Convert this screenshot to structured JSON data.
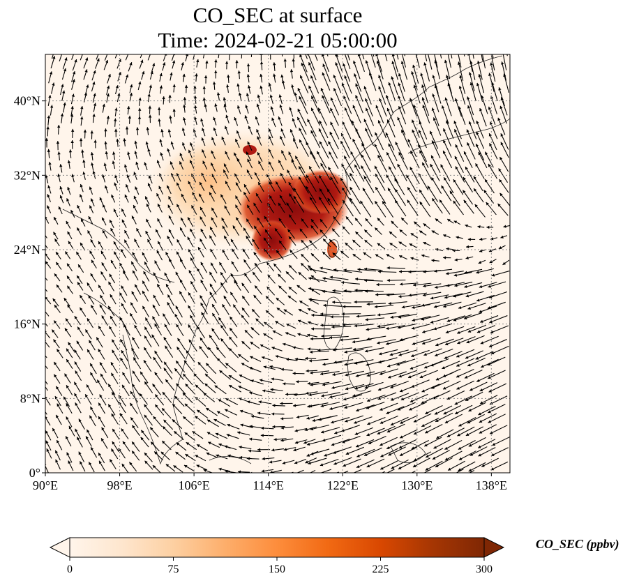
{
  "title_line1": "CO_SEC at surface",
  "title_line2": "Time: 2024-02-21 05:00:00",
  "map": {
    "lon_range": [
      90,
      140
    ],
    "lat_range": [
      0,
      45
    ],
    "x_ticks": [
      90,
      98,
      106,
      114,
      122,
      130,
      138
    ],
    "x_tick_labels": [
      "90°E",
      "98°E",
      "106°E",
      "114°E",
      "122°E",
      "130°E",
      "138°E"
    ],
    "y_ticks": [
      0,
      8,
      16,
      24,
      32,
      40
    ],
    "y_tick_labels": [
      "0°",
      "8°N",
      "16°N",
      "24°N",
      "32°N",
      "40°N"
    ],
    "gridlines": true,
    "field_background_color": "#fff5eb"
  },
  "colorbar": {
    "label": "CO_SEC (ppbv)",
    "ticks": [
      0,
      75,
      150,
      225,
      300
    ],
    "tick_labels": [
      "0",
      "75",
      "150",
      "225",
      "300"
    ],
    "range": [
      0,
      300
    ],
    "colormap": [
      "#fff5eb",
      "#fee6ce",
      "#fdd0a2",
      "#fdae6b",
      "#fd8d3c",
      "#f16913",
      "#d94801",
      "#a63603",
      "#7f2704"
    ],
    "extend": "both"
  }
}
